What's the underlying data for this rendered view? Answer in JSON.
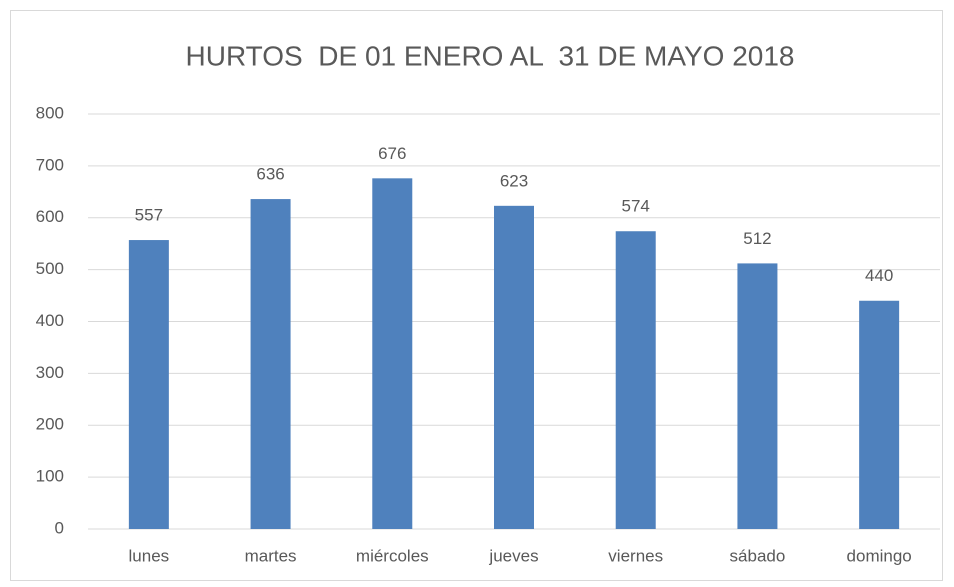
{
  "chart_data": {
    "type": "bar",
    "title": "HURTOS  DE 01 ENERO AL  31 DE MAYO 2018",
    "categories": [
      "lunes",
      "martes",
      "miércoles",
      "jueves",
      "viernes",
      "sábado",
      "domingo"
    ],
    "values": [
      557,
      636,
      676,
      623,
      574,
      512,
      440
    ],
    "color": "#4f81bd",
    "ylim": [
      0,
      800
    ],
    "yticks": [
      0,
      100,
      200,
      300,
      400,
      500,
      600,
      700,
      800
    ],
    "grid": true
  }
}
